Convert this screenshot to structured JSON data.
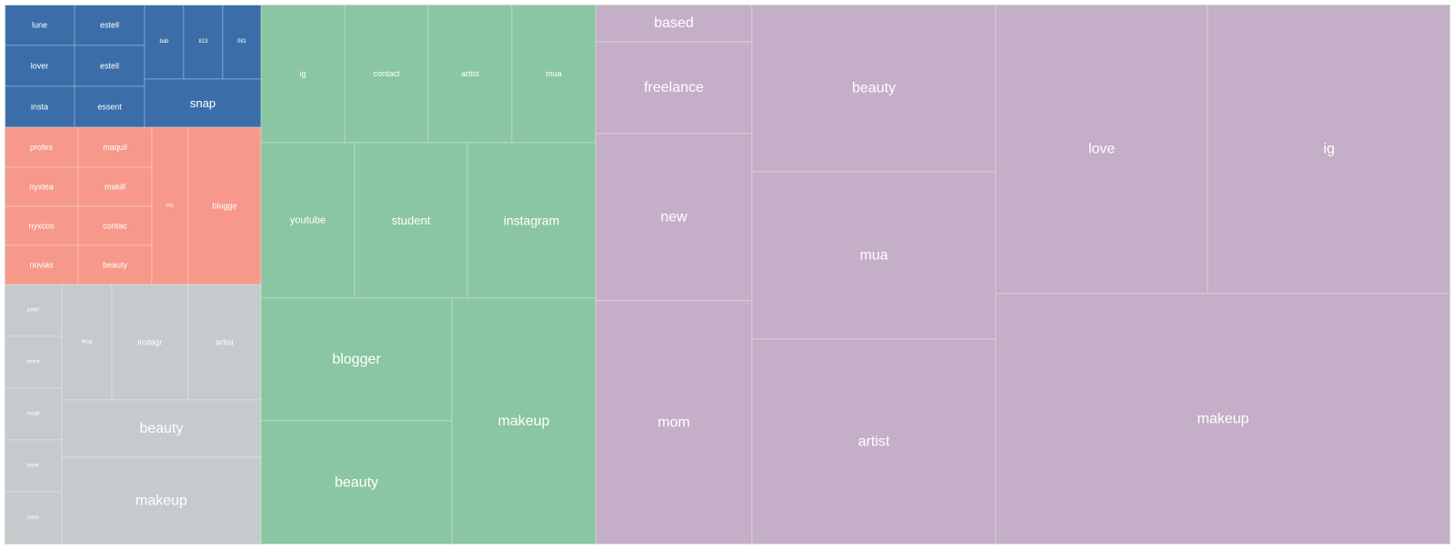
{
  "chart_data": {
    "type": "treemap",
    "colors": {
      "blue": "#3b6ea8",
      "salmon": "#f6998a",
      "gray": "#c5cacd",
      "green": "#8ac6a1",
      "purple": "#c5aec7"
    },
    "groups": [
      {
        "color": "blue",
        "children": [
          {
            "label": "lune"
          },
          {
            "label": "estell"
          },
          {
            "label": "lover"
          },
          {
            "label": "estell"
          },
          {
            "label": "insta"
          },
          {
            "label": "essent"
          },
          {
            "label": "bab"
          },
          {
            "label": "813"
          },
          {
            "label": "081"
          },
          {
            "label": "snap"
          }
        ]
      },
      {
        "color": "salmon",
        "children": [
          {
            "label": "profes"
          },
          {
            "label": "maquil"
          },
          {
            "label": "nyxtea"
          },
          {
            "label": "makill"
          },
          {
            "label": "nyxcos"
          },
          {
            "label": "contac"
          },
          {
            "label": "novias"
          },
          {
            "label": "beauty"
          },
          {
            "label": "ins"
          },
          {
            "label": "blogge"
          }
        ]
      },
      {
        "color": "gray",
        "children": [
          {
            "label": "pelel"
          },
          {
            "label": "montr"
          },
          {
            "label": "mcgil"
          },
          {
            "label": "lover"
          },
          {
            "label": "intov"
          },
          {
            "label": "blog"
          },
          {
            "label": "instagr"
          },
          {
            "label": "artist"
          },
          {
            "label": "beauty"
          },
          {
            "label": "makeup"
          }
        ]
      },
      {
        "color": "green",
        "children": [
          {
            "label": "ig"
          },
          {
            "label": "contact"
          },
          {
            "label": "artist"
          },
          {
            "label": "mua"
          },
          {
            "label": "youtube"
          },
          {
            "label": "student"
          },
          {
            "label": "instagram"
          },
          {
            "label": "blogger"
          },
          {
            "label": "beauty"
          },
          {
            "label": "makeup"
          }
        ]
      },
      {
        "color": "purple",
        "children": [
          {
            "label": "based"
          },
          {
            "label": "freelance"
          },
          {
            "label": "new"
          },
          {
            "label": "mom"
          },
          {
            "label": "beauty"
          },
          {
            "label": "mua"
          },
          {
            "label": "artist"
          },
          {
            "label": "love"
          },
          {
            "label": "ig"
          },
          {
            "label": "makeup"
          }
        ]
      }
    ]
  }
}
